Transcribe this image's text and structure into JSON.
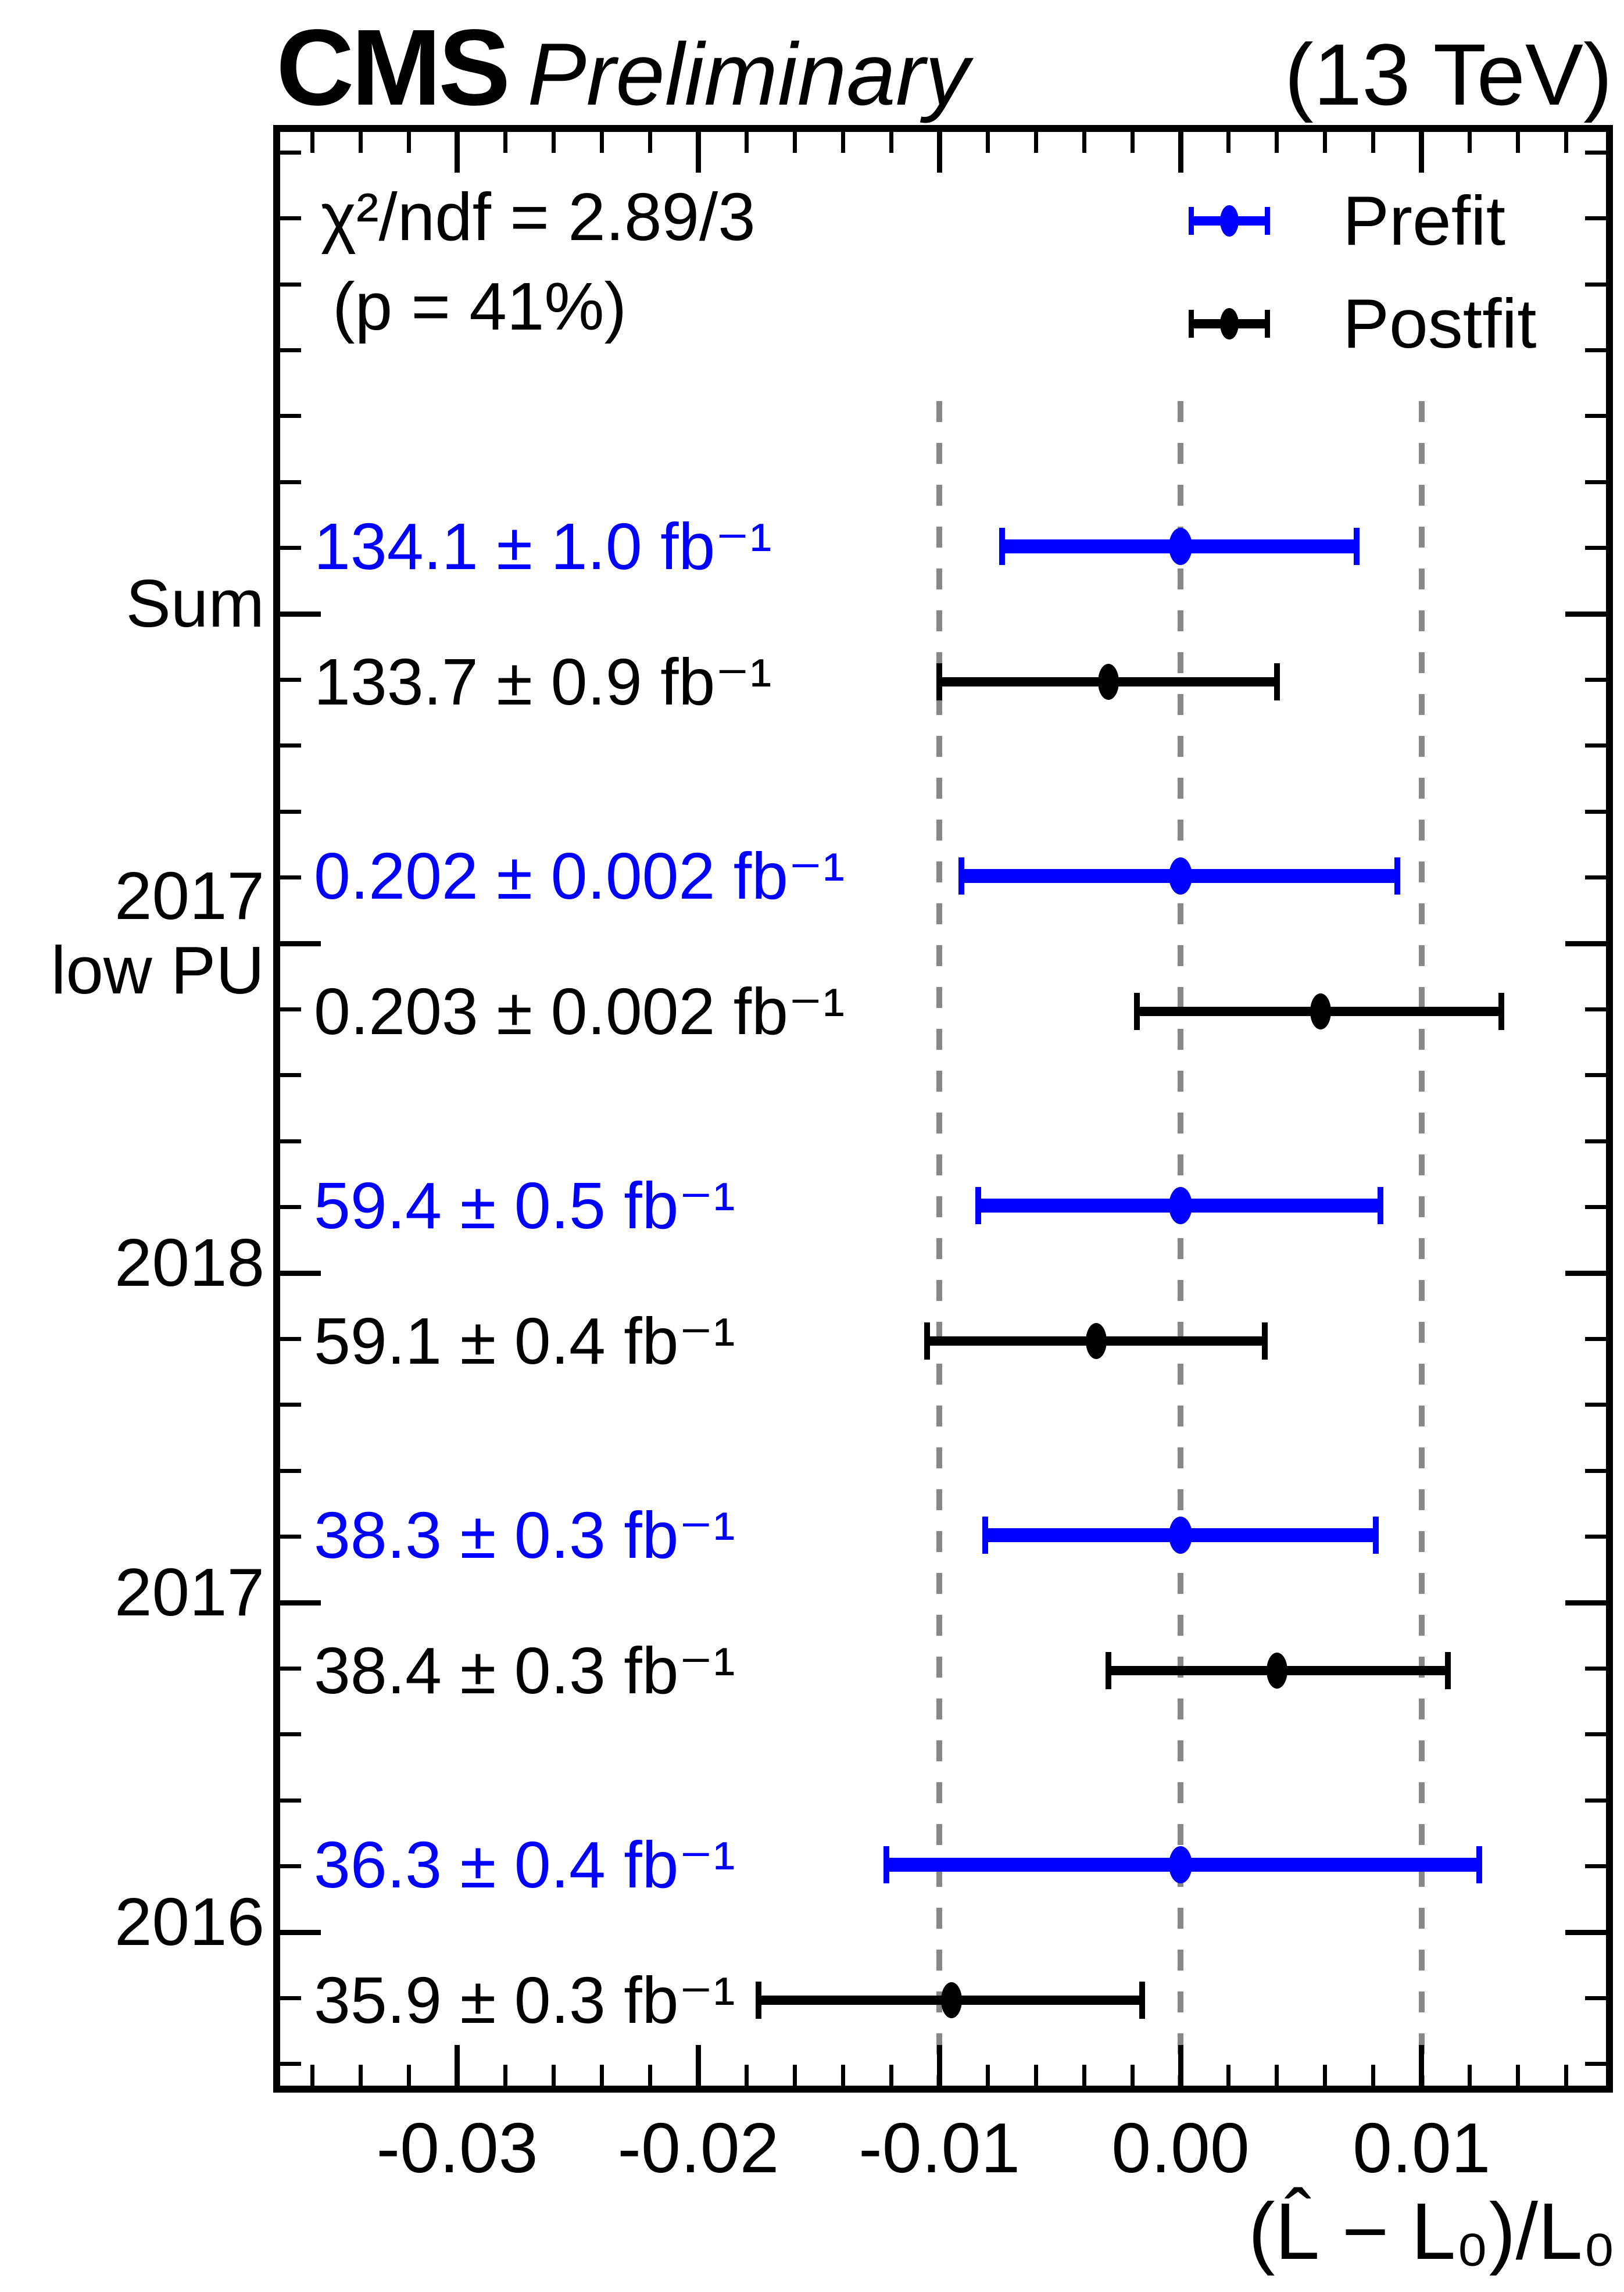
{
  "header": {
    "experiment": "CMS",
    "status": "Preliminary",
    "energy": "(13 TeV)"
  },
  "stats": {
    "chi2": "χ²/ndf = 2.89/3",
    "pvalue": "(p = 41%)"
  },
  "legend": {
    "position": "top-right",
    "entries": [
      {
        "label": "Prefit",
        "color": "#0000ff"
      },
      {
        "label": "Postfit",
        "color": "#000000"
      }
    ]
  },
  "chart_data": {
    "type": "scatter",
    "subtype": "horizontal-error-bar-forest",
    "title": "",
    "xlabel": "(L̂ − L₀)/L₀",
    "ylabel": "",
    "xlim": [
      -0.0376,
      0.018
    ],
    "grid": "vertical dashed lines at -0.01, 0.00, +0.01",
    "dashed_lines": [
      -0.01,
      0.0,
      0.01
    ],
    "xticks_major": [
      {
        "value": -0.03,
        "label": "-0.03"
      },
      {
        "value": -0.02,
        "label": "-0.02"
      },
      {
        "value": -0.01,
        "label": "-0.01"
      },
      {
        "value": 0.0,
        "label": "0.00"
      },
      {
        "value": 0.01,
        "label": "0.01"
      }
    ],
    "xtick_minor_step": 0.002,
    "legend_position": "top-right",
    "groups": [
      {
        "label_lines": [
          "Sum"
        ],
        "points": [
          {
            "series": "Prefit",
            "label": "134.1 ± 1.0 fb⁻¹",
            "x": 0.0,
            "x_lo": -0.0074,
            "x_hi": 0.0073,
            "color": "#0000ff"
          },
          {
            "series": "Postfit",
            "label": "133.7 ± 0.9 fb⁻¹",
            "x": -0.003,
            "x_lo": -0.01,
            "x_hi": 0.004,
            "color": "#000000"
          }
        ]
      },
      {
        "label_lines": [
          "2017",
          "low PU"
        ],
        "points": [
          {
            "series": "Prefit",
            "label": "0.202 ± 0.002 fb⁻¹",
            "x": 0.0,
            "x_lo": -0.0091,
            "x_hi": 0.009,
            "color": "#0000ff"
          },
          {
            "series": "Postfit",
            "label": "0.203 ± 0.002 fb⁻¹",
            "x": 0.0058,
            "x_lo": -0.0018,
            "x_hi": 0.0133,
            "color": "#000000"
          }
        ]
      },
      {
        "label_lines": [
          "2018"
        ],
        "points": [
          {
            "series": "Prefit",
            "label": "59.4 ± 0.5 fb⁻¹",
            "x": 0.0,
            "x_lo": -0.0084,
            "x_hi": 0.0083,
            "color": "#0000ff"
          },
          {
            "series": "Postfit",
            "label": "59.1 ± 0.4 fb⁻¹",
            "x": -0.0035,
            "x_lo": -0.0105,
            "x_hi": 0.0035,
            "color": "#000000"
          }
        ]
      },
      {
        "label_lines": [
          "2017"
        ],
        "points": [
          {
            "series": "Prefit",
            "label": "38.3 ± 0.3 fb⁻¹",
            "x": 0.0,
            "x_lo": -0.0081,
            "x_hi": 0.0081,
            "color": "#0000ff"
          },
          {
            "series": "Postfit",
            "label": "38.4 ± 0.3 fb⁻¹",
            "x": 0.004,
            "x_lo": -0.003,
            "x_hi": 0.0111,
            "color": "#000000"
          }
        ]
      },
      {
        "label_lines": [
          "2016"
        ],
        "points": [
          {
            "series": "Prefit",
            "label": "36.3 ± 0.4 fb⁻¹",
            "x": 0.0,
            "x_lo": -0.0122,
            "x_hi": 0.0124,
            "color": "#0000ff"
          },
          {
            "series": "Postfit",
            "label": "35.9 ± 0.3 fb⁻¹",
            "x": -0.0095,
            "x_lo": -0.0175,
            "x_hi": -0.0016,
            "color": "#000000"
          }
        ]
      }
    ]
  }
}
